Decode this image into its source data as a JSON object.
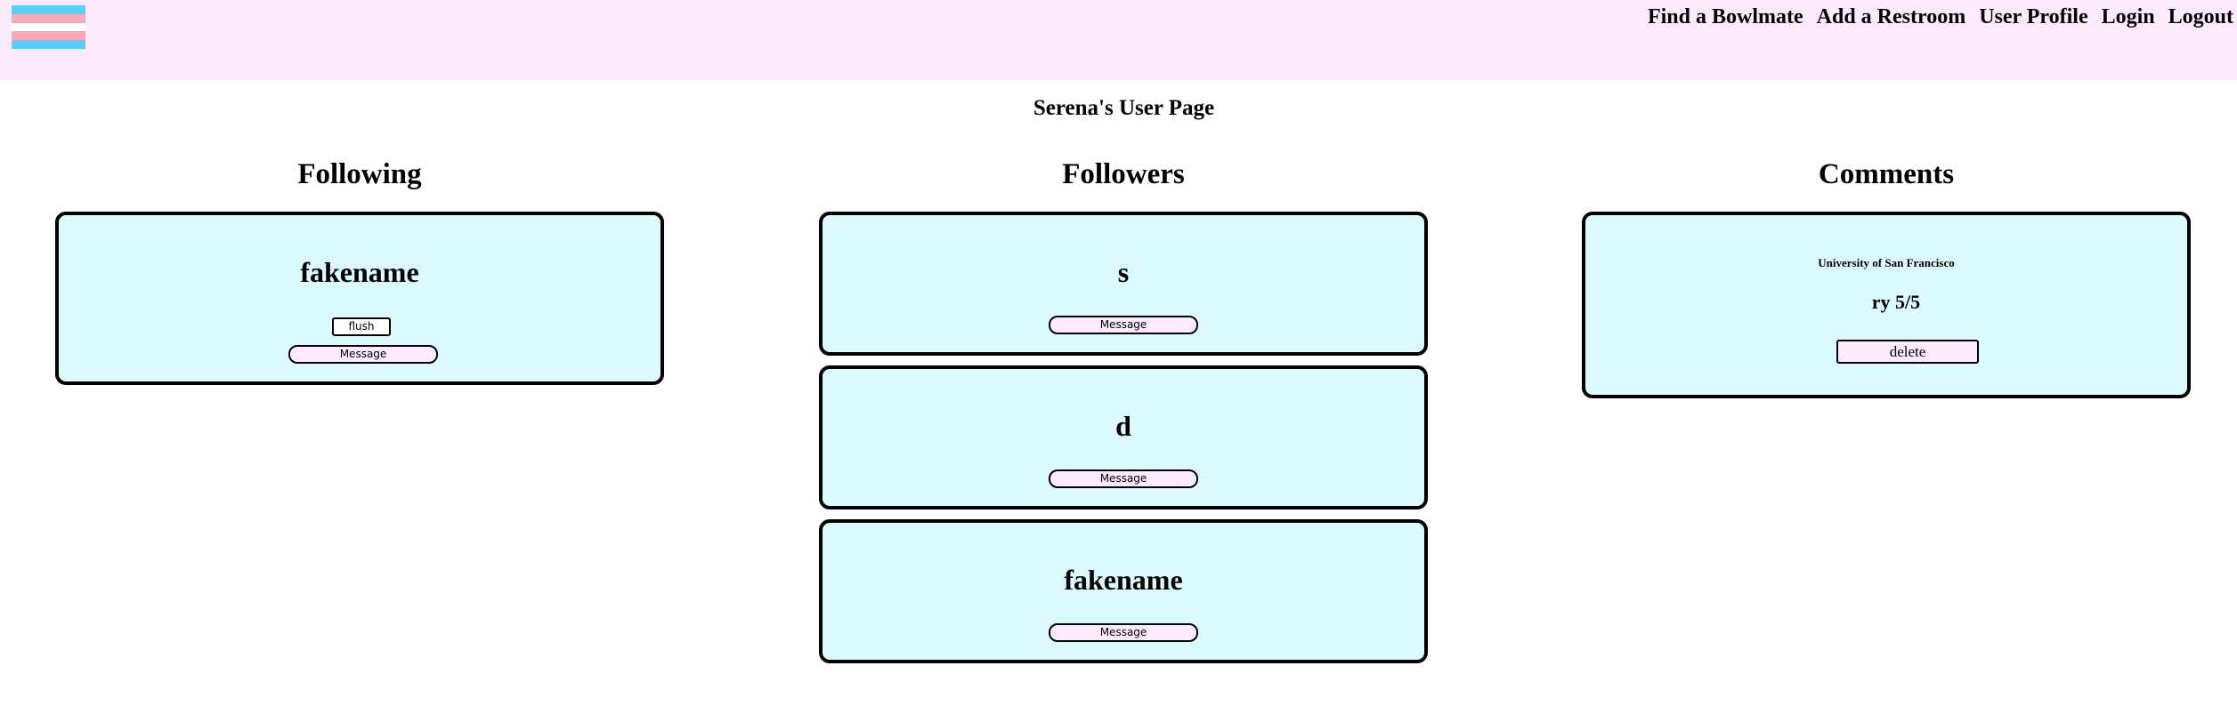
{
  "nav": {
    "links": [
      "Find a Bowlmate",
      "Add a Restroom",
      "User Profile",
      "Login",
      "Logout"
    ],
    "logo_colors": [
      "#5bcefa",
      "#f5a9b8",
      "#ffffff",
      "#f5a9b8",
      "#5bcefa"
    ]
  },
  "page": {
    "title": "Serena's User Page"
  },
  "following": {
    "title": "Following",
    "items": [
      {
        "name": "fakename",
        "flush_label": "flush",
        "message_label": "Message"
      }
    ]
  },
  "followers": {
    "title": "Followers",
    "items": [
      {
        "name": "s",
        "message_label": "Message"
      },
      {
        "name": "d",
        "message_label": "Message"
      },
      {
        "name": "fakename",
        "message_label": "Message"
      }
    ]
  },
  "comments": {
    "title": "Comments",
    "items": [
      {
        "location": "University of San Francisco",
        "text": "ry 5/5",
        "delete_label": "delete"
      }
    ]
  },
  "colors": {
    "nav_bg": "#fdebfd",
    "card_bg": "#dcf9fd",
    "button_bg": "#fdebfd"
  }
}
